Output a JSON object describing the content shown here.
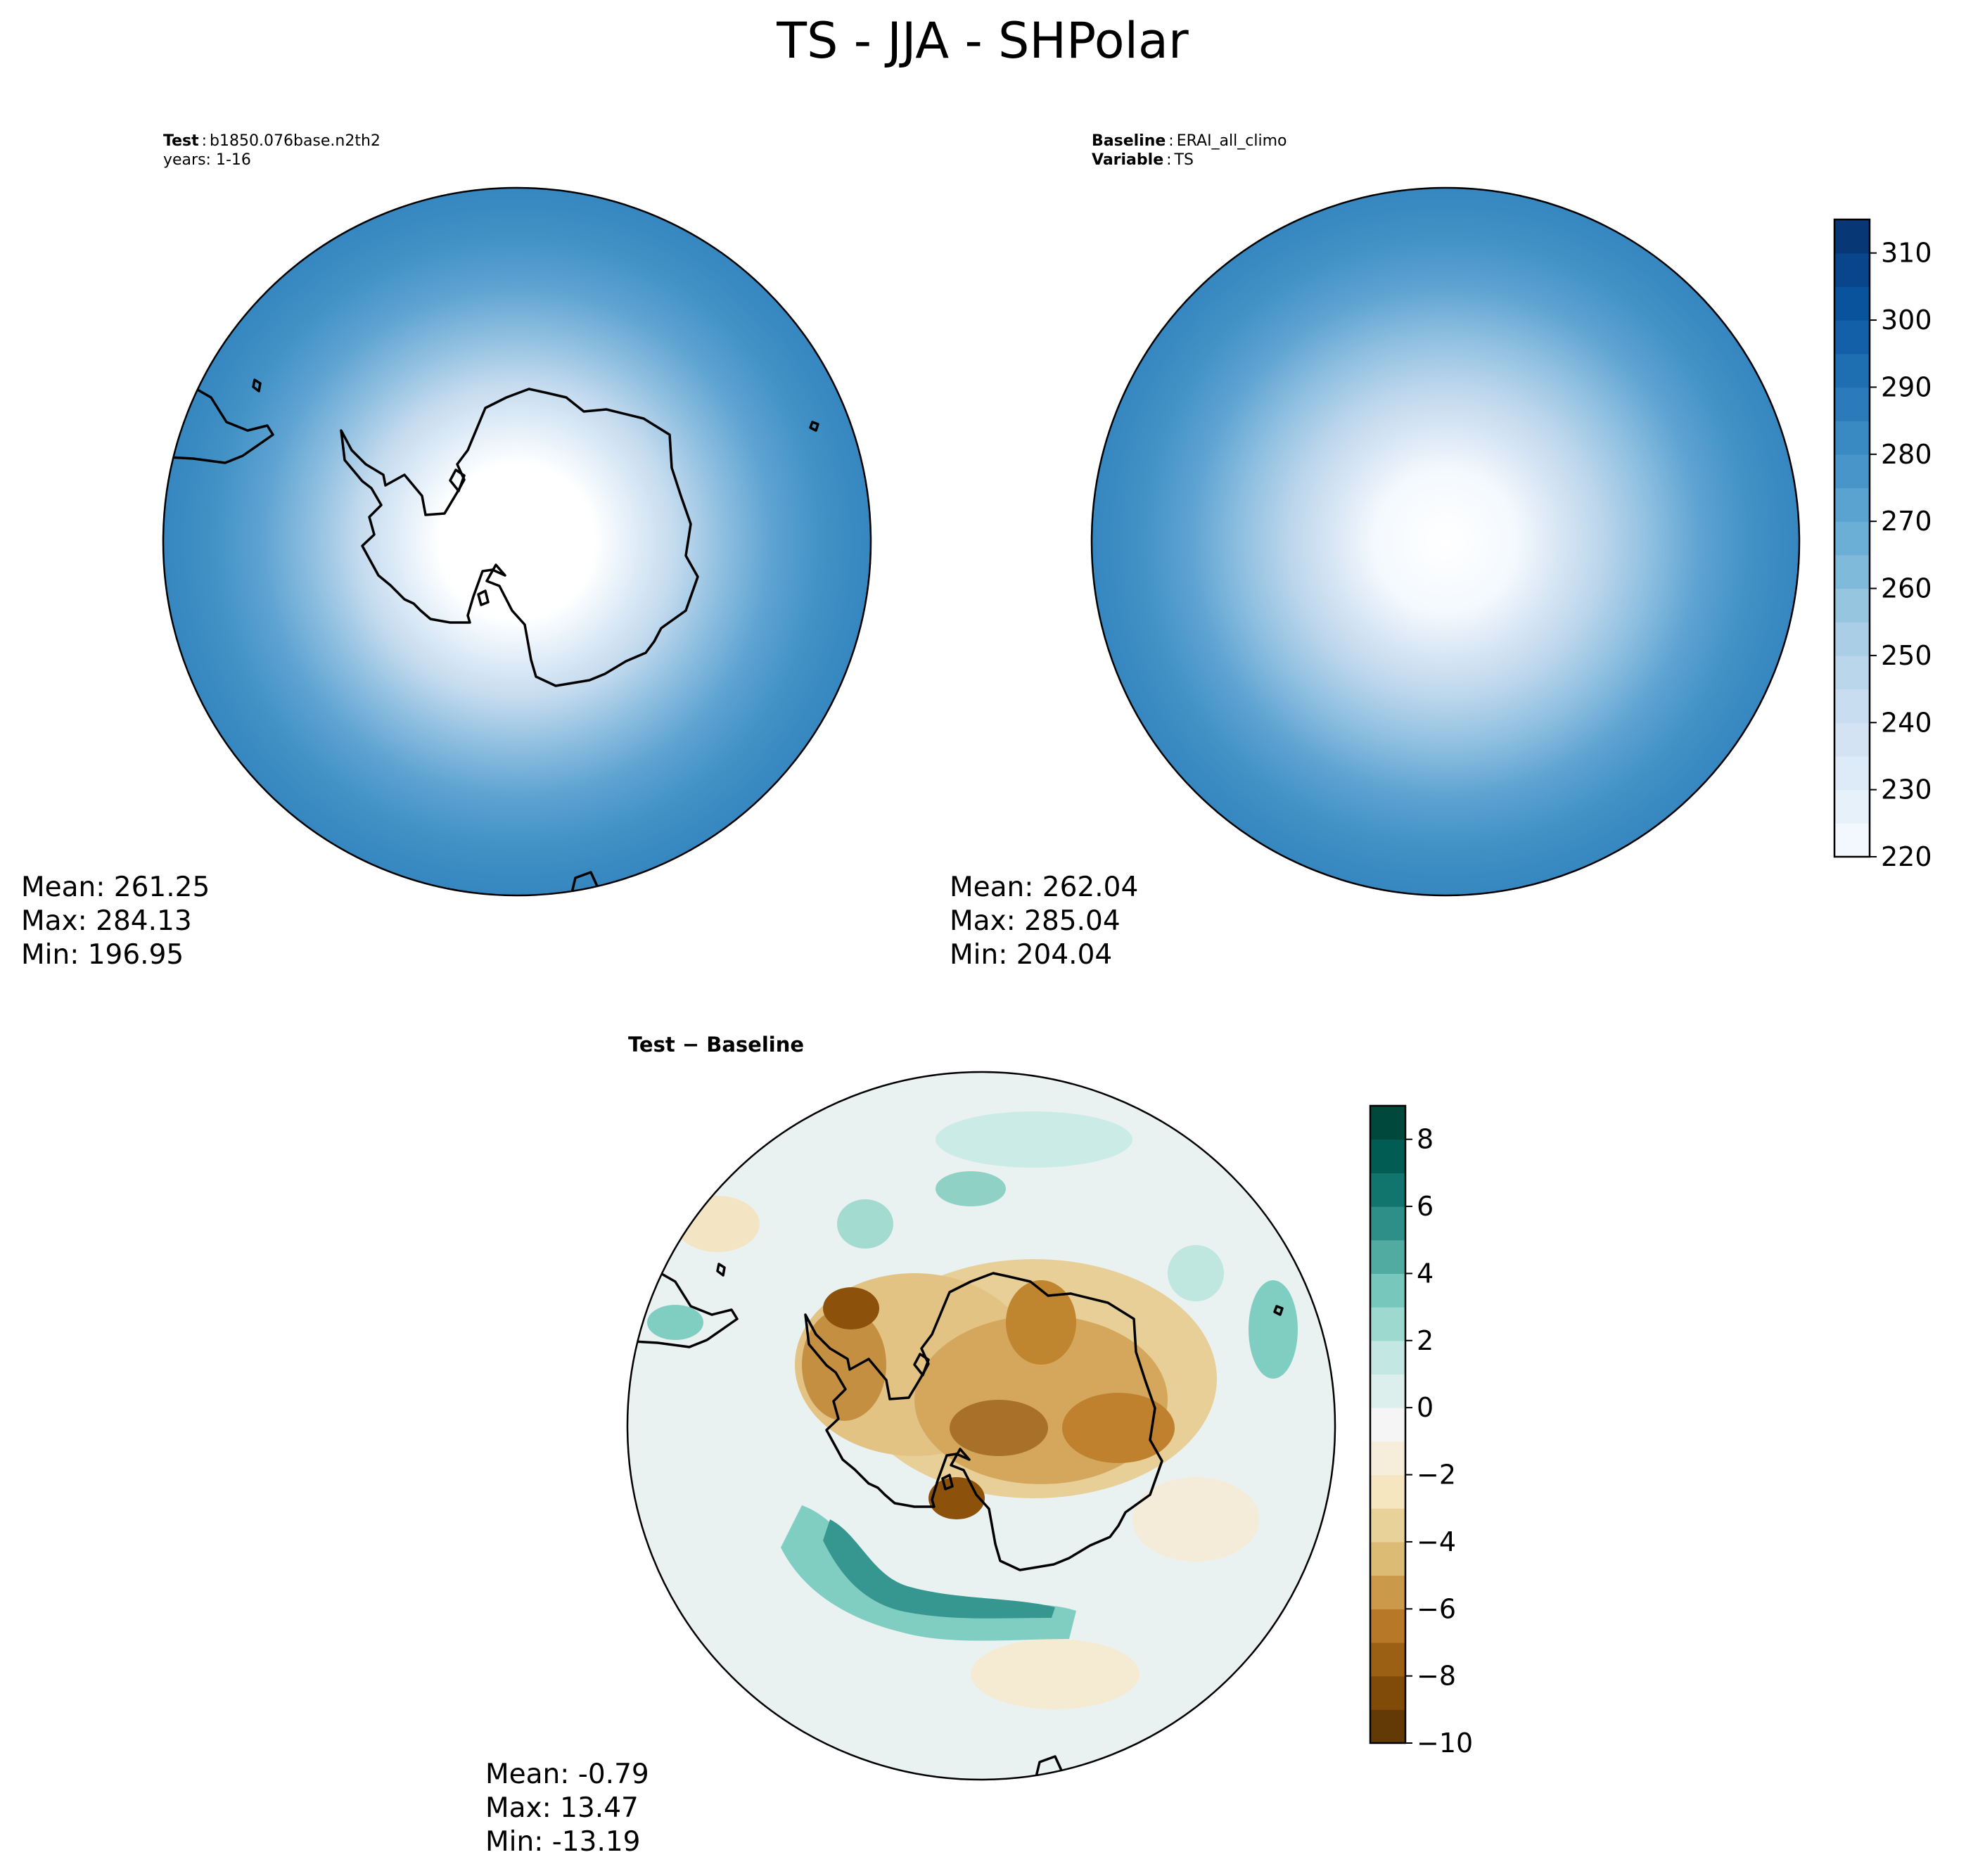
{
  "title": "TS - JJA - SHPolar",
  "panels": {
    "test": {
      "label_bold": "Test",
      "label_sep": ":",
      "label_value": "b1850.076base.n2th2",
      "line2": "years: 1-16",
      "stats": {
        "mean": "Mean: 261.25",
        "max": "Max: 284.13",
        "min": "Min: 196.95"
      }
    },
    "baseline": {
      "label_bold": "Baseline",
      "label_sep": ":",
      "label_value": "ERAI_all_climo",
      "line2_bold": "Variable",
      "line2_sep": ":",
      "line2_value": "TS",
      "stats": {
        "mean": "Mean: 262.04",
        "max": "Max: 285.04",
        "min": "Min: 204.04"
      }
    },
    "diff": {
      "title": "Test − Baseline",
      "stats": {
        "mean": "Mean: -0.79",
        "max": "Max: 13.47",
        "min": "Min: -13.19"
      }
    }
  },
  "colorbars": {
    "field": {
      "range": [
        220,
        315
      ],
      "ticks": [
        "220",
        "230",
        "240",
        "250",
        "260",
        "270",
        "280",
        "290",
        "300",
        "310"
      ],
      "colormap": [
        "#f7fbff",
        "#deebf7",
        "#c6dbef",
        "#9ecae1",
        "#6baed6",
        "#4292c6",
        "#2171b5",
        "#08519c",
        "#08306b"
      ]
    },
    "difference": {
      "range": [
        -10,
        9
      ],
      "ticks": [
        "−10",
        "−8",
        "−6",
        "−4",
        "−2",
        "0",
        "2",
        "4",
        "6",
        "8"
      ],
      "colormap": [
        "#543005",
        "#8c510a",
        "#bf812d",
        "#dfc27d",
        "#f6e8c3",
        "#f5f5f5",
        "#c7eae5",
        "#80cdc1",
        "#35978f",
        "#01665e",
        "#003c30"
      ]
    }
  }
}
